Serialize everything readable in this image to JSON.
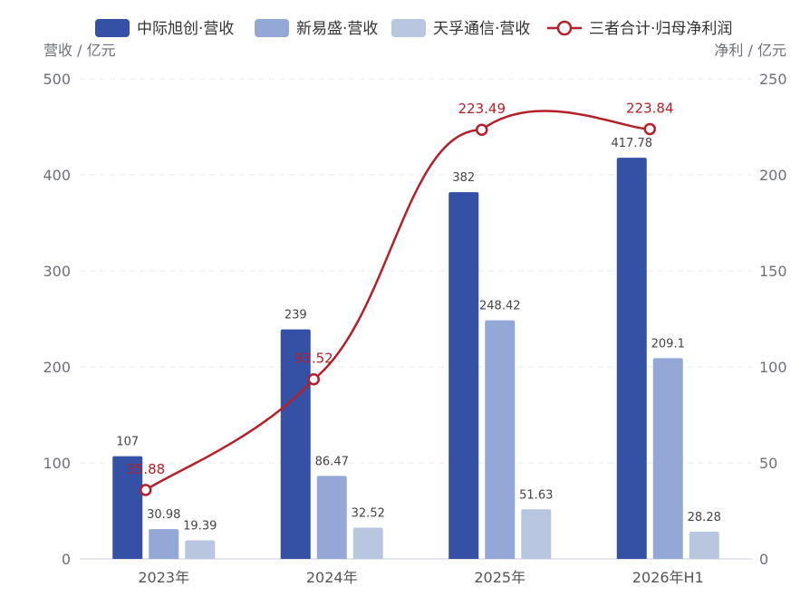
{
  "chart_data": {
    "type": "bar",
    "categories": [
      "2023年",
      "2024年",
      "2025年",
      "2026年H1"
    ],
    "series": [
      {
        "name": "中际旭创·营收",
        "type": "bar",
        "axis": "left",
        "color": "#3451a6",
        "values": [
          107,
          239,
          382,
          417.78
        ],
        "labels": [
          "107",
          "239",
          "382",
          "417.78"
        ]
      },
      {
        "name": "新易盛·营收",
        "type": "bar",
        "axis": "left",
        "color": "#93a8d6",
        "values": [
          30.98,
          86.47,
          248.42,
          209.1
        ],
        "labels": [
          "30.98",
          "86.47",
          "248.42",
          "209.1"
        ]
      },
      {
        "name": "天孚通信·营收",
        "type": "bar",
        "axis": "left",
        "color": "#b9c6e0",
        "values": [
          19.39,
          32.52,
          51.63,
          28.28
        ],
        "labels": [
          "19.39",
          "32.52",
          "51.63",
          "28.28"
        ]
      },
      {
        "name": "三者合计·归母净利润",
        "type": "line",
        "axis": "right",
        "color": "#b3202a",
        "values": [
          35.88,
          93.52,
          223.49,
          223.84
        ],
        "labels": [
          "35.88",
          "93.52",
          "223.49",
          "223.84"
        ]
      }
    ],
    "ylabel_left": "营收 / 亿元",
    "ylabel_right": "净利 / 亿元",
    "ylim_left": [
      0,
      500
    ],
    "ylim_right": [
      0,
      250
    ],
    "yticks_left": [
      "0",
      "100",
      "200",
      "300",
      "400",
      "500"
    ],
    "yticks_right": [
      "0",
      "50",
      "100",
      "150",
      "200",
      "250"
    ],
    "grid": true,
    "legend_position": "top"
  }
}
